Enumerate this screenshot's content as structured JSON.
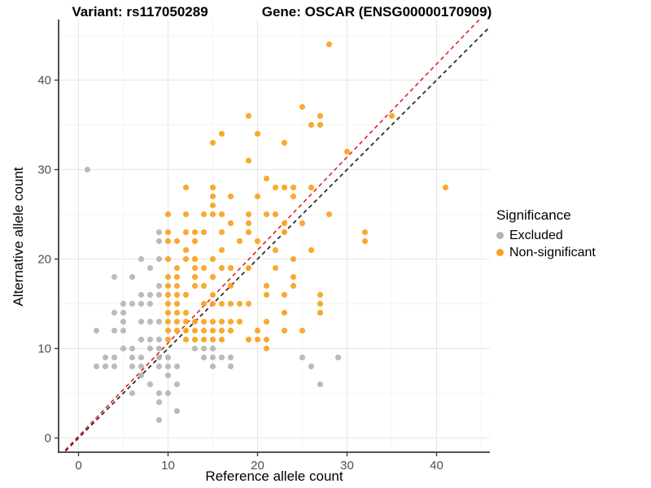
{
  "chart_data": {
    "type": "scatter",
    "title_left": "Variant: rs117050289",
    "title_right": "Gene: OSCAR (ENSG00000170909)",
    "xlabel": "Reference allele count",
    "ylabel": "Alternative allele count",
    "xlim": [
      -2.2,
      46.0
    ],
    "ylim": [
      -1.6,
      46.8
    ],
    "x_ticks": [
      0,
      10,
      20,
      30,
      40
    ],
    "y_ticks": [
      0,
      10,
      20,
      30,
      40
    ],
    "x_minor_ticks": [
      5,
      15,
      25,
      35,
      45
    ],
    "y_minor_ticks": [
      5,
      15,
      25,
      35,
      45
    ],
    "grid": true,
    "legend": {
      "title": "Significance",
      "position": "right",
      "items": [
        {
          "label": "Excluded",
          "color": "#b5b5b5"
        },
        {
          "label": "Non-significant",
          "color": "#faa21e"
        }
      ]
    },
    "lines": [
      {
        "name": "identity-line",
        "color": "#1a1a1a",
        "dashed": true,
        "slope": 1.0,
        "intercept": 0.0
      },
      {
        "name": "expected-ratio-line",
        "color": "#e02222",
        "dashed": true,
        "slope": 1.04,
        "intercept": 0.2
      }
    ],
    "series": [
      {
        "name": "Excluded",
        "color": "#b5b5b5",
        "points": [
          [
            1,
            30
          ],
          [
            9,
            23
          ],
          [
            9,
            22
          ],
          [
            7,
            20
          ],
          [
            9,
            20
          ],
          [
            8,
            19
          ],
          [
            4,
            18
          ],
          [
            6,
            18
          ],
          [
            9,
            17
          ],
          [
            7,
            16
          ],
          [
            8,
            16
          ],
          [
            9,
            16
          ],
          [
            5,
            15
          ],
          [
            6,
            15
          ],
          [
            7,
            15
          ],
          [
            8,
            15
          ],
          [
            4,
            14
          ],
          [
            5,
            14
          ],
          [
            5,
            13
          ],
          [
            7,
            13
          ],
          [
            8,
            13
          ],
          [
            9,
            13
          ],
          [
            2,
            12
          ],
          [
            4,
            12
          ],
          [
            5,
            12
          ],
          [
            7,
            11
          ],
          [
            8,
            11
          ],
          [
            9,
            11
          ],
          [
            5,
            10
          ],
          [
            6,
            10
          ],
          [
            8,
            10
          ],
          [
            9,
            10
          ],
          [
            13,
            10
          ],
          [
            14,
            10
          ],
          [
            15,
            10
          ],
          [
            3,
            9
          ],
          [
            4,
            9
          ],
          [
            6,
            9
          ],
          [
            7,
            9
          ],
          [
            9,
            9
          ],
          [
            10,
            9
          ],
          [
            14,
            9
          ],
          [
            15,
            9
          ],
          [
            16,
            9
          ],
          [
            17,
            9
          ],
          [
            25,
            9
          ],
          [
            29,
            9
          ],
          [
            2,
            8
          ],
          [
            3,
            8
          ],
          [
            4,
            8
          ],
          [
            6,
            8
          ],
          [
            7,
            8
          ],
          [
            9,
            8
          ],
          [
            10,
            8
          ],
          [
            11,
            8
          ],
          [
            15,
            8
          ],
          [
            17,
            8
          ],
          [
            26,
            8
          ],
          [
            7,
            7
          ],
          [
            10,
            7
          ],
          [
            8,
            6
          ],
          [
            11,
            6
          ],
          [
            27,
            6
          ],
          [
            6,
            5
          ],
          [
            9,
            5
          ],
          [
            10,
            5
          ],
          [
            9,
            4
          ],
          [
            11,
            3
          ],
          [
            9,
            2
          ]
        ]
      },
      {
        "name": "Non-significant",
        "color": "#faa21e",
        "points": [
          [
            28,
            44
          ],
          [
            25,
            37
          ],
          [
            19,
            36
          ],
          [
            27,
            36
          ],
          [
            35,
            36
          ],
          [
            26,
            35
          ],
          [
            27,
            35
          ],
          [
            16,
            34
          ],
          [
            20,
            34
          ],
          [
            15,
            33
          ],
          [
            23,
            33
          ],
          [
            30,
            32
          ],
          [
            19,
            31
          ],
          [
            21,
            29
          ],
          [
            12,
            28
          ],
          [
            15,
            28
          ],
          [
            22,
            28
          ],
          [
            23,
            28
          ],
          [
            24,
            28
          ],
          [
            26,
            28
          ],
          [
            41,
            28
          ],
          [
            15,
            27
          ],
          [
            17,
            27
          ],
          [
            20,
            27
          ],
          [
            24,
            27
          ],
          [
            15,
            26
          ],
          [
            10,
            25
          ],
          [
            12,
            25
          ],
          [
            14,
            25
          ],
          [
            15,
            25
          ],
          [
            16,
            25
          ],
          [
            19,
            25
          ],
          [
            21,
            25
          ],
          [
            22,
            25
          ],
          [
            28,
            25
          ],
          [
            17,
            24
          ],
          [
            19,
            24
          ],
          [
            23,
            24
          ],
          [
            25,
            24
          ],
          [
            10,
            23
          ],
          [
            12,
            23
          ],
          [
            13,
            23
          ],
          [
            14,
            23
          ],
          [
            16,
            23
          ],
          [
            19,
            23
          ],
          [
            23,
            23
          ],
          [
            32,
            23
          ],
          [
            10,
            22
          ],
          [
            11,
            22
          ],
          [
            13,
            22
          ],
          [
            18,
            22
          ],
          [
            20,
            22
          ],
          [
            32,
            22
          ],
          [
            12,
            21
          ],
          [
            16,
            21
          ],
          [
            22,
            21
          ],
          [
            26,
            21
          ],
          [
            10,
            20
          ],
          [
            12,
            20
          ],
          [
            13,
            20
          ],
          [
            15,
            20
          ],
          [
            24,
            20
          ],
          [
            11,
            19
          ],
          [
            13,
            19
          ],
          [
            14,
            19
          ],
          [
            16,
            19
          ],
          [
            17,
            19
          ],
          [
            19,
            19
          ],
          [
            22,
            19
          ],
          [
            10,
            18
          ],
          [
            11,
            18
          ],
          [
            13,
            18
          ],
          [
            15,
            18
          ],
          [
            24,
            18
          ],
          [
            10,
            17
          ],
          [
            11,
            17
          ],
          [
            13,
            17
          ],
          [
            14,
            17
          ],
          [
            17,
            17
          ],
          [
            21,
            17
          ],
          [
            24,
            17
          ],
          [
            10,
            16
          ],
          [
            11,
            16
          ],
          [
            12,
            16
          ],
          [
            15,
            16
          ],
          [
            21,
            16
          ],
          [
            23,
            16
          ],
          [
            27,
            16
          ],
          [
            10,
            15
          ],
          [
            11,
            15
          ],
          [
            14,
            15
          ],
          [
            15,
            15
          ],
          [
            16,
            15
          ],
          [
            17,
            15
          ],
          [
            18,
            15
          ],
          [
            19,
            15
          ],
          [
            27,
            15
          ],
          [
            10,
            14
          ],
          [
            11,
            14
          ],
          [
            12,
            14
          ],
          [
            23,
            14
          ],
          [
            27,
            14
          ],
          [
            10,
            13
          ],
          [
            11,
            13
          ],
          [
            12,
            13
          ],
          [
            13,
            13
          ],
          [
            14,
            13
          ],
          [
            15,
            13
          ],
          [
            16,
            13
          ],
          [
            17,
            13
          ],
          [
            18,
            13
          ],
          [
            21,
            13
          ],
          [
            10,
            12
          ],
          [
            11,
            12
          ],
          [
            12,
            12
          ],
          [
            13,
            12
          ],
          [
            14,
            12
          ],
          [
            15,
            12
          ],
          [
            16,
            12
          ],
          [
            17,
            12
          ],
          [
            20,
            12
          ],
          [
            23,
            12
          ],
          [
            25,
            12
          ],
          [
            10,
            11
          ],
          [
            12,
            11
          ],
          [
            13,
            11
          ],
          [
            14,
            11
          ],
          [
            15,
            11
          ],
          [
            16,
            11
          ],
          [
            19,
            11
          ],
          [
            20,
            11
          ],
          [
            21,
            11
          ],
          [
            21,
            10
          ]
        ]
      }
    ],
    "style": {
      "point_radius": 3.6,
      "point_opacity": 0.92,
      "major_grid_color": "#e5e5e5",
      "minor_grid_color": "#f2f2f2",
      "axis_line_color": "#3c3c3c",
      "tick_color": "#3c3c3c",
      "tick_label_color": "#4d4d4d"
    }
  }
}
